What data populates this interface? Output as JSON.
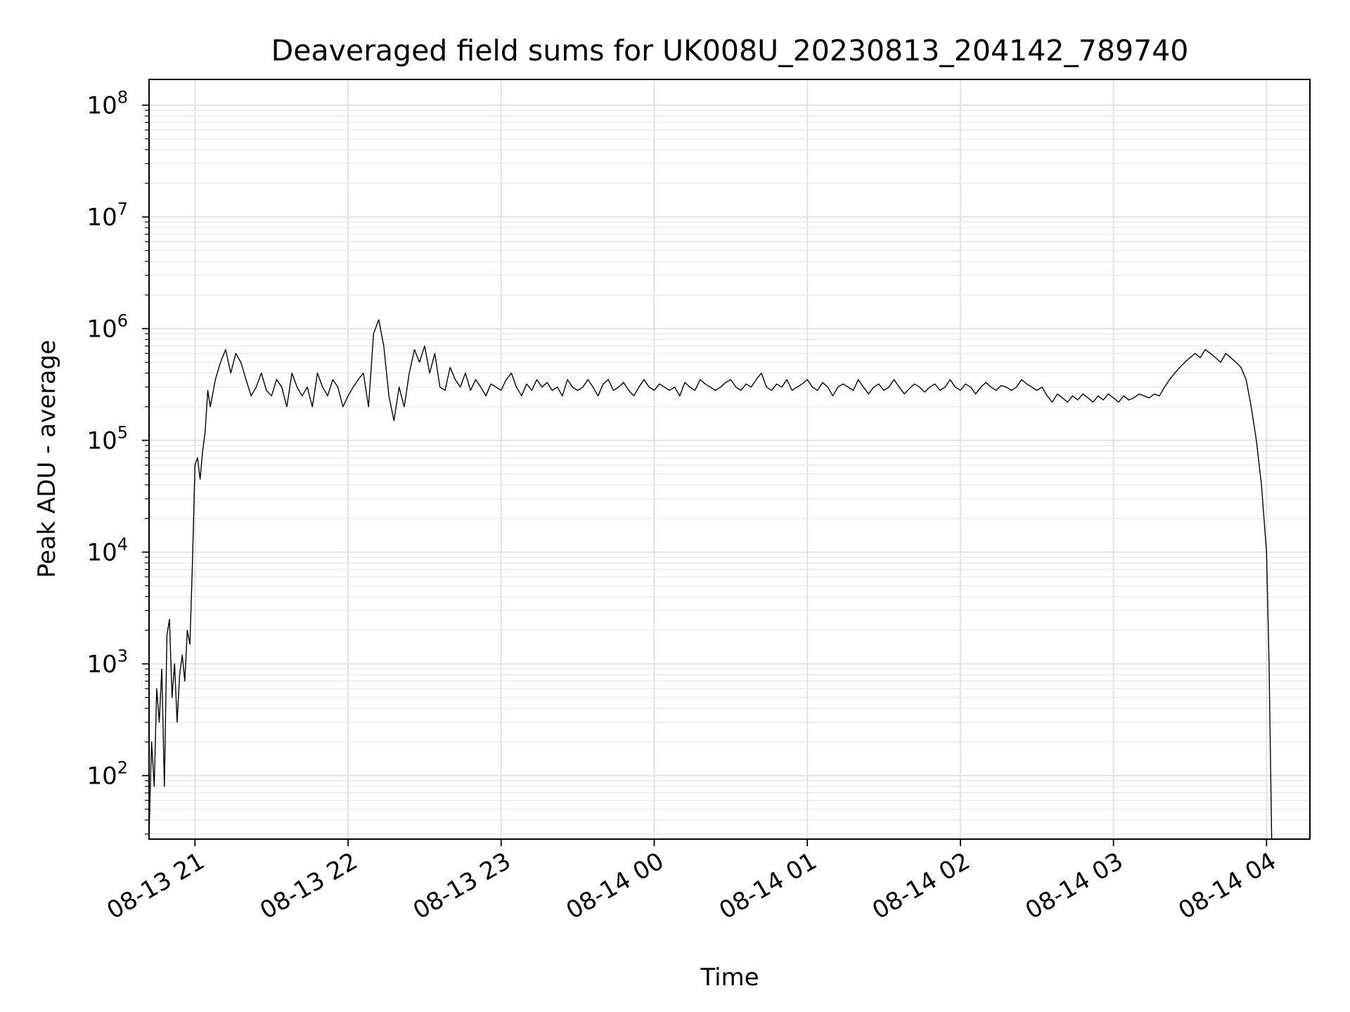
{
  "chart_data": {
    "type": "line",
    "title": "Deaveraged field sums for UK008U_20230813_204142_789740",
    "xlabel": "Time",
    "ylabel": "Peak ADU - average",
    "yscale": "log",
    "ylim": [
      27,
      170000000
    ],
    "xlim": [
      "08-13 20:42",
      "08-14 04:17"
    ],
    "x_ticks": [
      {
        "label": "08-13 21",
        "value": "08-13 21:00"
      },
      {
        "label": "08-13 22",
        "value": "08-13 22:00"
      },
      {
        "label": "08-13 23",
        "value": "08-13 23:00"
      },
      {
        "label": "08-14 00",
        "value": "08-14 00:00"
      },
      {
        "label": "08-14 01",
        "value": "08-14 01:00"
      },
      {
        "label": "08-14 02",
        "value": "08-14 02:00"
      },
      {
        "label": "08-14 03",
        "value": "08-14 03:00"
      },
      {
        "label": "08-14 04",
        "value": "08-14 04:00"
      }
    ],
    "y_ticks": [
      {
        "base": "10",
        "exp": "2",
        "value": 100
      },
      {
        "base": "10",
        "exp": "3",
        "value": 1000
      },
      {
        "base": "10",
        "exp": "4",
        "value": 10000
      },
      {
        "base": "10",
        "exp": "5",
        "value": 100000
      },
      {
        "base": "10",
        "exp": "6",
        "value": 1000000
      },
      {
        "base": "10",
        "exp": "7",
        "value": 10000000
      },
      {
        "base": "10",
        "exp": "8",
        "value": 100000000
      }
    ],
    "grid": true,
    "line_color": "#000000",
    "series": [
      {
        "x": [
          "08-13 20:42",
          "08-13 20:43",
          "08-13 20:44",
          "08-13 20:45",
          "08-13 20:46",
          "08-13 20:47",
          "08-13 20:48",
          "08-13 20:49",
          "08-13 20:50",
          "08-13 20:51",
          "08-13 20:52",
          "08-13 20:53",
          "08-13 20:54",
          "08-13 20:55",
          "08-13 20:56",
          "08-13 20:57",
          "08-13 20:58",
          "08-13 20:59",
          "08-13 21:00",
          "08-13 21:01",
          "08-13 21:02",
          "08-13 21:03",
          "08-13 21:04",
          "08-13 21:05",
          "08-13 21:06",
          "08-13 21:08",
          "08-13 21:10",
          "08-13 21:12",
          "08-13 21:14",
          "08-13 21:16",
          "08-13 21:18",
          "08-13 21:20",
          "08-13 21:22",
          "08-13 21:24",
          "08-13 21:26",
          "08-13 21:28",
          "08-13 21:30",
          "08-13 21:32",
          "08-13 21:34",
          "08-13 21:36",
          "08-13 21:38",
          "08-13 21:40",
          "08-13 21:42",
          "08-13 21:44",
          "08-13 21:46",
          "08-13 21:48",
          "08-13 21:50",
          "08-13 21:52",
          "08-13 21:54",
          "08-13 21:56",
          "08-13 21:58",
          "08-13 22:00",
          "08-13 22:02",
          "08-13 22:04",
          "08-13 22:06",
          "08-13 22:08",
          "08-13 22:10",
          "08-13 22:12",
          "08-13 22:14",
          "08-13 22:16",
          "08-13 22:18",
          "08-13 22:20",
          "08-13 22:22",
          "08-13 22:24",
          "08-13 22:26",
          "08-13 22:28",
          "08-13 22:30",
          "08-13 22:32",
          "08-13 22:34",
          "08-13 22:36",
          "08-13 22:38",
          "08-13 22:40",
          "08-13 22:42",
          "08-13 22:44",
          "08-13 22:46",
          "08-13 22:48",
          "08-13 22:50",
          "08-13 22:52",
          "08-13 22:54",
          "08-13 22:56",
          "08-13 22:58",
          "08-13 23:00",
          "08-13 23:02",
          "08-13 23:04",
          "08-13 23:06",
          "08-13 23:08",
          "08-13 23:10",
          "08-13 23:12",
          "08-13 23:14",
          "08-13 23:16",
          "08-13 23:18",
          "08-13 23:20",
          "08-13 23:22",
          "08-13 23:24",
          "08-13 23:26",
          "08-13 23:28",
          "08-13 23:30",
          "08-13 23:32",
          "08-13 23:34",
          "08-13 23:36",
          "08-13 23:38",
          "08-13 23:40",
          "08-13 23:42",
          "08-13 23:44",
          "08-13 23:46",
          "08-13 23:48",
          "08-13 23:50",
          "08-13 23:52",
          "08-13 23:54",
          "08-13 23:56",
          "08-13 23:58",
          "08-14 00:00",
          "08-14 00:02",
          "08-14 00:04",
          "08-14 00:06",
          "08-14 00:08",
          "08-14 00:10",
          "08-14 00:12",
          "08-14 00:14",
          "08-14 00:16",
          "08-14 00:18",
          "08-14 00:20",
          "08-14 00:22",
          "08-14 00:24",
          "08-14 00:26",
          "08-14 00:28",
          "08-14 00:30",
          "08-14 00:32",
          "08-14 00:34",
          "08-14 00:36",
          "08-14 00:38",
          "08-14 00:40",
          "08-14 00:42",
          "08-14 00:44",
          "08-14 00:46",
          "08-14 00:48",
          "08-14 00:50",
          "08-14 00:52",
          "08-14 00:54",
          "08-14 00:56",
          "08-14 00:58",
          "08-14 01:00",
          "08-14 01:02",
          "08-14 01:04",
          "08-14 01:06",
          "08-14 01:08",
          "08-14 01:10",
          "08-14 01:12",
          "08-14 01:14",
          "08-14 01:16",
          "08-14 01:18",
          "08-14 01:20",
          "08-14 01:22",
          "08-14 01:24",
          "08-14 01:26",
          "08-14 01:28",
          "08-14 01:30",
          "08-14 01:32",
          "08-14 01:34",
          "08-14 01:36",
          "08-14 01:38",
          "08-14 01:40",
          "08-14 01:42",
          "08-14 01:44",
          "08-14 01:46",
          "08-14 01:48",
          "08-14 01:50",
          "08-14 01:52",
          "08-14 01:54",
          "08-14 01:56",
          "08-14 01:58",
          "08-14 02:00",
          "08-14 02:02",
          "08-14 02:04",
          "08-14 02:06",
          "08-14 02:08",
          "08-14 02:10",
          "08-14 02:12",
          "08-14 02:14",
          "08-14 02:16",
          "08-14 02:18",
          "08-14 02:20",
          "08-14 02:22",
          "08-14 02:24",
          "08-14 02:26",
          "08-14 02:28",
          "08-14 02:30",
          "08-14 02:32",
          "08-14 02:34",
          "08-14 02:36",
          "08-14 02:38",
          "08-14 02:40",
          "08-14 02:42",
          "08-14 02:44",
          "08-14 02:46",
          "08-14 02:48",
          "08-14 02:50",
          "08-14 02:52",
          "08-14 02:54",
          "08-14 02:56",
          "08-14 02:58",
          "08-14 03:00",
          "08-14 03:02",
          "08-14 03:04",
          "08-14 03:06",
          "08-14 03:08",
          "08-14 03:10",
          "08-14 03:12",
          "08-14 03:14",
          "08-14 03:16",
          "08-14 03:18",
          "08-14 03:20",
          "08-14 03:22",
          "08-14 03:24",
          "08-14 03:26",
          "08-14 03:28",
          "08-14 03:30",
          "08-14 03:32",
          "08-14 03:34",
          "08-14 03:36",
          "08-14 03:38",
          "08-14 03:40",
          "08-14 03:42",
          "08-14 03:44",
          "08-14 03:46",
          "08-14 03:48",
          "08-14 03:50",
          "08-14 03:52",
          "08-14 03:54",
          "08-14 03:56",
          "08-14 03:58",
          "08-14 04:00",
          "08-14 04:01",
          "08-14 04:02"
        ],
        "y": [
          30,
          200,
          80,
          600,
          300,
          900,
          80,
          1800,
          2500,
          500,
          1000,
          300,
          800,
          1200,
          700,
          2000,
          1500,
          8000,
          60000,
          70000,
          45000,
          80000,
          120000,
          280000,
          200000,
          350000,
          500000,
          650000,
          400000,
          600000,
          500000,
          350000,
          250000,
          300000,
          400000,
          280000,
          250000,
          350000,
          300000,
          200000,
          400000,
          300000,
          250000,
          300000,
          200000,
          400000,
          300000,
          250000,
          350000,
          300000,
          200000,
          250000,
          300000,
          350000,
          400000,
          200000,
          900000,
          1200000,
          700000,
          250000,
          150000,
          300000,
          200000,
          400000,
          650000,
          500000,
          700000,
          400000,
          600000,
          300000,
          280000,
          450000,
          350000,
          300000,
          400000,
          280000,
          350000,
          300000,
          250000,
          320000,
          300000,
          280000,
          350000,
          400000,
          300000,
          250000,
          320000,
          280000,
          350000,
          300000,
          330000,
          280000,
          300000,
          250000,
          350000,
          300000,
          280000,
          300000,
          350000,
          300000,
          250000,
          320000,
          350000,
          280000,
          300000,
          330000,
          280000,
          250000,
          300000,
          350000,
          300000,
          280000,
          320000,
          300000,
          280000,
          300000,
          250000,
          330000,
          300000,
          280000,
          350000,
          320000,
          300000,
          280000,
          300000,
          330000,
          350000,
          300000,
          280000,
          320000,
          300000,
          350000,
          400000,
          300000,
          280000,
          320000,
          300000,
          350000,
          280000,
          300000,
          320000,
          350000,
          300000,
          280000,
          330000,
          300000,
          250000,
          300000,
          320000,
          300000,
          280000,
          350000,
          300000,
          260000,
          300000,
          320000,
          280000,
          300000,
          350000,
          300000,
          260000,
          290000,
          320000,
          300000,
          270000,
          300000,
          320000,
          280000,
          300000,
          350000,
          300000,
          280000,
          320000,
          300000,
          260000,
          300000,
          330000,
          300000,
          280000,
          310000,
          300000,
          280000,
          300000,
          350000,
          320000,
          300000,
          280000,
          300000,
          250000,
          220000,
          260000,
          240000,
          220000,
          250000,
          230000,
          260000,
          240000,
          220000,
          250000,
          230000,
          260000,
          240000,
          220000,
          250000,
          230000,
          240000,
          260000,
          250000,
          240000,
          260000,
          250000,
          300000,
          350000,
          400000,
          450000,
          500000,
          550000,
          600000,
          550000,
          650000,
          600000,
          550000,
          500000,
          600000,
          550000,
          500000,
          450000,
          350000,
          200000,
          100000,
          40000,
          10000,
          1000,
          20
        ]
      }
    ]
  }
}
